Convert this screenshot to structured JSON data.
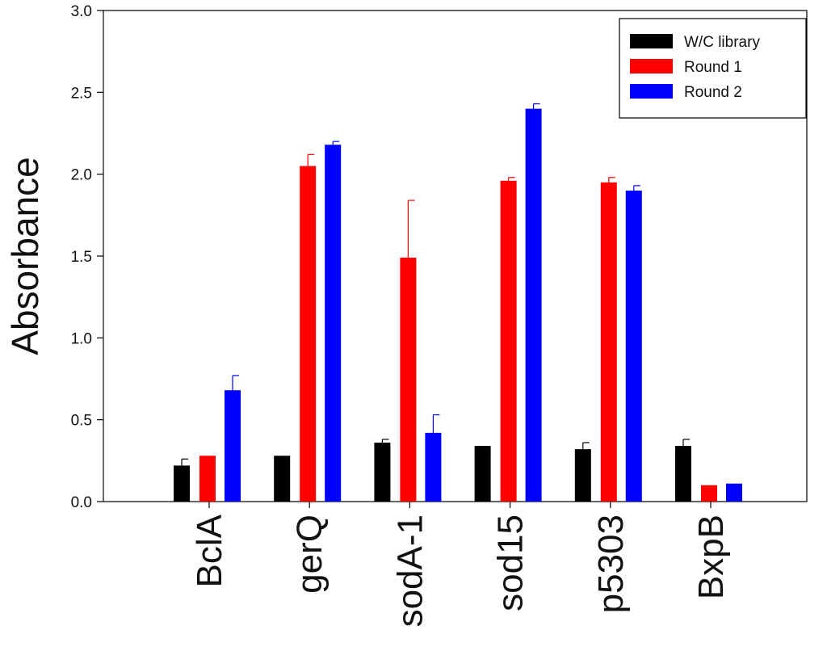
{
  "chart_data": {
    "type": "bar",
    "title": "",
    "xlabel": "",
    "ylabel": "Absorbance",
    "ylim": [
      0,
      3.0
    ],
    "yticks": [
      0.0,
      0.5,
      1.0,
      1.5,
      2.0,
      2.5,
      3.0
    ],
    "ytick_labels": [
      "0.0",
      "0.5",
      "1.0",
      "1.5",
      "2.0",
      "2.5",
      "3.0"
    ],
    "grid": false,
    "legend_position": "top-right",
    "categories": [
      "BclA",
      "gerQ",
      "sodA-1",
      "sod15",
      "p5303",
      "BxpB"
    ],
    "series": [
      {
        "name": "W/C library",
        "color": "#000000",
        "values": [
          0.22,
          0.28,
          0.36,
          0.34,
          0.32,
          0.34
        ],
        "errors": [
          0.04,
          0.0,
          0.02,
          0.0,
          0.04,
          0.04
        ]
      },
      {
        "name": "Round 1",
        "color": "#ff0000",
        "values": [
          0.28,
          2.05,
          1.49,
          1.96,
          1.95,
          0.1
        ],
        "errors": [
          0.0,
          0.07,
          0.35,
          0.02,
          0.03,
          0.0
        ]
      },
      {
        "name": "Round 2",
        "color": "#0000ff",
        "values": [
          0.68,
          2.18,
          0.42,
          2.4,
          1.9,
          0.11
        ],
        "errors": [
          0.09,
          0.02,
          0.11,
          0.03,
          0.03,
          0.0
        ]
      }
    ]
  }
}
